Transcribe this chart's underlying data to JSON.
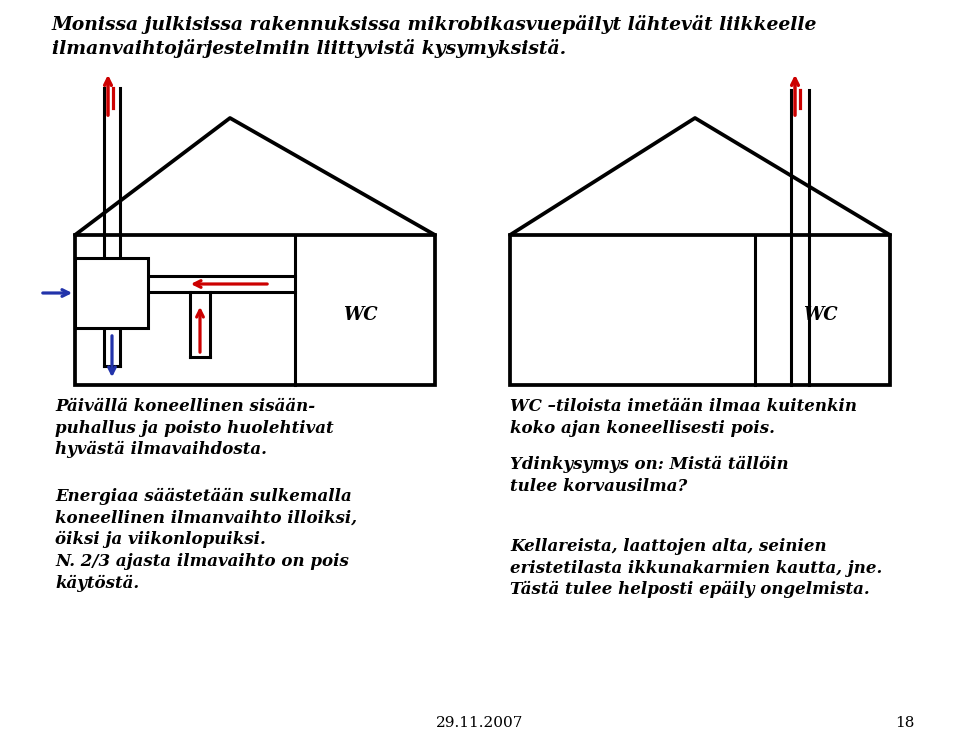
{
  "bg_color": "#ffffff",
  "title_text": "Monissa julkisissa rakennuksissa mikrobikasvuepäilyt lähtevät liikkeelle\nilmanvaihtojärjestelmiin liittyvistä kysymyksistä.",
  "left_text1": "Päivällä koneellinen sisään-\npuhallus ja poisto huolehtivat\nhyvästä ilmavaihdosta.",
  "left_text2": "Energiaa säästetään sulkemalla\nkoneellinen ilmanvaihto illoiksi,\nöiksi ja viikonlopuiksi.\nN. 2/3 ajasta ilmavaihto on pois\nkäytöstä.",
  "right_text1": "WC –tiloista imetään ilmaa kuitenkin\nkoko ajan koneellisesti pois.",
  "right_text2": "Ydinkysymys on: Mistä tällöin\ntulee korvausilma?",
  "right_text3": "Kellareista, laattojen alta, seinien\neristetilasta ikkunakarmien kautta, jne.\nTästä tulee helposti epäily ongelmista.",
  "footer_date": "29.11.2007",
  "footer_page": "18",
  "text_color": "#000000",
  "red_color": "#cc0000",
  "blue_color": "#2233aa",
  "black_color": "#000000",
  "lw": 2.2
}
